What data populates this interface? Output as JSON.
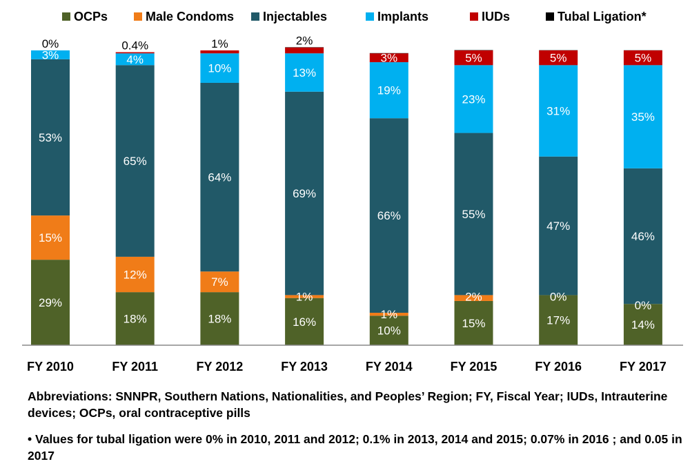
{
  "chart_data": {
    "type": "stacked-bar",
    "categories": [
      "FY 2010",
      "FY 2011",
      "FY 2012",
      "FY 2013",
      "FY 2014",
      "FY 2015",
      "FY 2016",
      "FY 2017"
    ],
    "series": [
      {
        "name": "OCPs",
        "color": "#4F6228",
        "values": [
          29,
          18,
          18,
          16,
          10,
          15,
          17,
          14
        ],
        "labels": [
          "29%",
          "18%",
          "18%",
          "16%",
          "10%",
          "15%",
          "17%",
          "14%"
        ]
      },
      {
        "name": "Male Condoms",
        "color": "#F07C18",
        "values": [
          15,
          12,
          7,
          1,
          1,
          2,
          0,
          0
        ],
        "labels": [
          "15%",
          "12%",
          "7%",
          "1%",
          "1%",
          "2%",
          "0%",
          "0%"
        ]
      },
      {
        "name": "Injectables",
        "color": "#215968",
        "values": [
          53,
          65,
          64,
          69,
          66,
          55,
          47,
          46
        ],
        "labels": [
          "53%",
          "65%",
          "64%",
          "69%",
          "66%",
          "55%",
          "47%",
          "46%"
        ]
      },
      {
        "name": "Implants",
        "color": "#00B0F0",
        "values": [
          3,
          4,
          10,
          13,
          19,
          23,
          31,
          35
        ],
        "labels": [
          "3%",
          "4%",
          "10%",
          "13%",
          "19%",
          "23%",
          "31%",
          "35%"
        ]
      },
      {
        "name": "IUDs",
        "color": "#C00000",
        "values": [
          0,
          0.4,
          1,
          2,
          3,
          5,
          5,
          5
        ],
        "labels": [
          "0%",
          "0.4%",
          "1%",
          "2%",
          "3%",
          "5%",
          "5%",
          "5%"
        ]
      },
      {
        "name": "Tubal Ligation*",
        "color": "#000000",
        "values": [
          0,
          0,
          0,
          0.1,
          0.1,
          0.1,
          0.07,
          0.05
        ]
      }
    ],
    "ylim": [
      0,
      100
    ],
    "grid": false,
    "legend": "top"
  },
  "notes": {
    "abbreviations": "Abbreviations: SNNPR, Southern Nations, Nationalities, and Peoples’ Region; FY, Fiscal Year; IUDs, Intrauterine devices; OCPs, oral contraceptive pills",
    "tubal": "• Values for tubal ligation were 0% in 2010, 2011 and 2012; 0.1% in 2013, 2014 and 2015; 0.07% in 2016 ; and 0.05 in 2017"
  }
}
